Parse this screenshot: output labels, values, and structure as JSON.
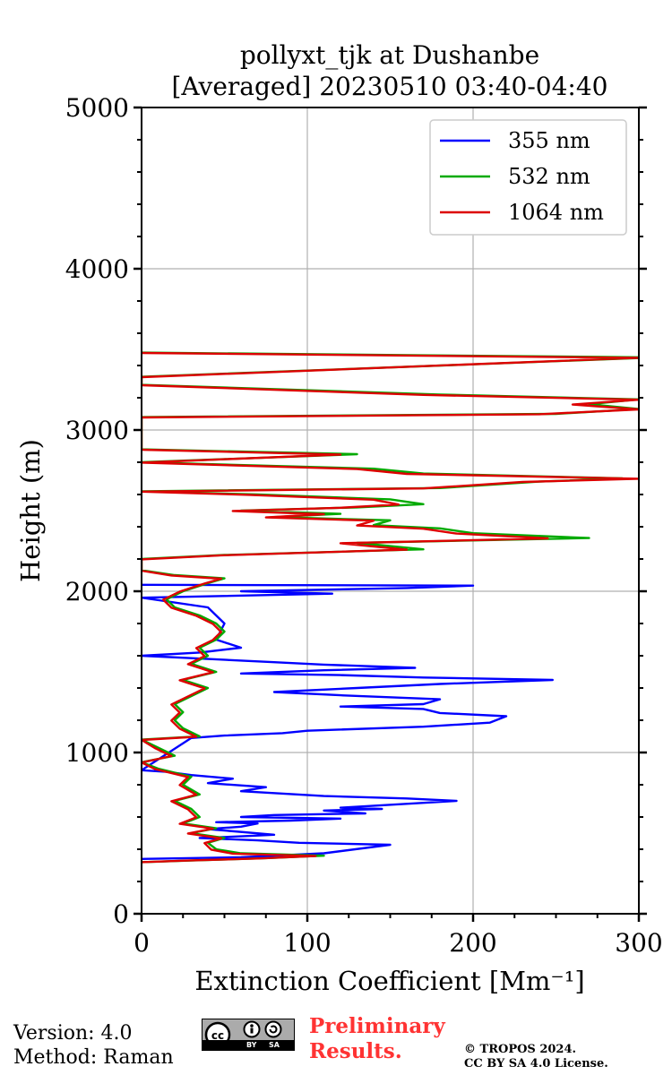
{
  "chart_data": {
    "type": "line",
    "title": [
      "pollyxt_tjk at Dushanbe",
      "[Averaged] 20230510 03:40-04:40"
    ],
    "xlabel": "Extinction Coefficient",
    "xlabel_unit": "[Mm⁻¹]",
    "ylabel": "Height (m)",
    "xlim": [
      0,
      300
    ],
    "ylim": [
      0,
      5000
    ],
    "xticks": [
      0,
      100,
      200,
      300
    ],
    "yticks": [
      0,
      1000,
      2000,
      3000,
      4000,
      5000
    ],
    "grid": true,
    "legend_position": "top-right",
    "series": [
      {
        "name": "355 nm",
        "color": "#0000ff",
        "points": [
          [
            0,
            340
          ],
          [
            60,
            350
          ],
          [
            110,
            375
          ],
          [
            150,
            428
          ],
          [
            95,
            440
          ],
          [
            70,
            455
          ],
          [
            35,
            470
          ],
          [
            60,
            480
          ],
          [
            80,
            490
          ],
          [
            40,
            525
          ],
          [
            60,
            540
          ],
          [
            70,
            560
          ],
          [
            45,
            568
          ],
          [
            90,
            578
          ],
          [
            120,
            590
          ],
          [
            60,
            600
          ],
          [
            80,
            612
          ],
          [
            135,
            622
          ],
          [
            110,
            640
          ],
          [
            145,
            650
          ],
          [
            120,
            658
          ],
          [
            190,
            700
          ],
          [
            160,
            715
          ],
          [
            110,
            730
          ],
          [
            60,
            760
          ],
          [
            75,
            785
          ],
          [
            40,
            810
          ],
          [
            55,
            838
          ],
          [
            30,
            860
          ],
          [
            15,
            880
          ],
          [
            0,
            890
          ],
          [
            30,
            1090
          ],
          [
            50,
            1105
          ],
          [
            85,
            1120
          ],
          [
            100,
            1135
          ],
          [
            170,
            1160
          ],
          [
            210,
            1185
          ],
          [
            220,
            1225
          ],
          [
            180,
            1245
          ],
          [
            170,
            1270
          ],
          [
            120,
            1285
          ],
          [
            170,
            1300
          ],
          [
            180,
            1330
          ],
          [
            120,
            1355
          ],
          [
            80,
            1375
          ],
          [
            130,
            1400
          ],
          [
            180,
            1425
          ],
          [
            248,
            1450
          ],
          [
            170,
            1465
          ],
          [
            120,
            1480
          ],
          [
            60,
            1490
          ],
          [
            110,
            1510
          ],
          [
            165,
            1525
          ],
          [
            110,
            1545
          ],
          [
            80,
            1560
          ],
          [
            40,
            1580
          ],
          [
            0,
            1600
          ],
          [
            35,
            1620
          ],
          [
            60,
            1650
          ],
          [
            45,
            1700
          ],
          [
            50,
            1800
          ],
          [
            40,
            1900
          ],
          [
            0,
            1960
          ],
          [
            115,
            1985
          ],
          [
            60,
            2000
          ],
          [
            160,
            2020
          ],
          [
            200,
            2035
          ],
          [
            0,
            2040
          ]
        ]
      },
      {
        "name": "532 nm",
        "color": "#00aa00",
        "points": [
          [
            0,
            320
          ],
          [
            30,
            330
          ],
          [
            75,
            345
          ],
          [
            110,
            360
          ],
          [
            60,
            375
          ],
          [
            45,
            400
          ],
          [
            40,
            440
          ],
          [
            50,
            470
          ],
          [
            30,
            500
          ],
          [
            45,
            530
          ],
          [
            25,
            560
          ],
          [
            35,
            600
          ],
          [
            30,
            650
          ],
          [
            20,
            700
          ],
          [
            35,
            740
          ],
          [
            25,
            800
          ],
          [
            30,
            850
          ],
          [
            10,
            900
          ],
          [
            0,
            940
          ],
          [
            20,
            980
          ],
          [
            10,
            1030
          ],
          [
            0,
            1080
          ],
          [
            35,
            1100
          ],
          [
            25,
            1150
          ],
          [
            20,
            1200
          ],
          [
            25,
            1250
          ],
          [
            20,
            1300
          ],
          [
            30,
            1350
          ],
          [
            40,
            1400
          ],
          [
            25,
            1450
          ],
          [
            45,
            1500
          ],
          [
            30,
            1550
          ],
          [
            40,
            1600
          ],
          [
            35,
            1650
          ],
          [
            45,
            1700
          ],
          [
            50,
            1750
          ],
          [
            45,
            1800
          ],
          [
            35,
            1850
          ],
          [
            20,
            1900
          ],
          [
            15,
            1950
          ],
          [
            25,
            2000
          ],
          [
            40,
            2050
          ],
          [
            50,
            2080
          ],
          [
            20,
            2100
          ],
          [
            0,
            2130
          ],
          [
            0,
            2200
          ],
          [
            50,
            2225
          ],
          [
            170,
            2260
          ],
          [
            130,
            2300
          ],
          [
            270,
            2330
          ],
          [
            200,
            2360
          ],
          [
            180,
            2390
          ],
          [
            140,
            2410
          ],
          [
            150,
            2440
          ],
          [
            80,
            2460
          ],
          [
            120,
            2480
          ],
          [
            60,
            2500
          ],
          [
            130,
            2520
          ],
          [
            170,
            2540
          ],
          [
            150,
            2570
          ],
          [
            70,
            2600
          ],
          [
            0,
            2620
          ],
          [
            180,
            2640
          ],
          [
            240,
            2680
          ],
          [
            290,
            2700
          ],
          [
            170,
            2730
          ],
          [
            140,
            2760
          ],
          [
            0,
            2800
          ],
          [
            130,
            2850
          ],
          [
            0,
            2880
          ],
          [
            0,
            3080
          ],
          [
            250,
            3100
          ],
          [
            300,
            3130
          ],
          [
            270,
            3160
          ],
          [
            300,
            3190
          ],
          [
            180,
            3220
          ],
          [
            0,
            3280
          ],
          [
            0,
            3330
          ],
          [
            310,
            3450
          ],
          [
            0,
            3480
          ]
        ]
      },
      {
        "name": "1064 nm",
        "color": "#dd0000",
        "points": [
          [
            0,
            320
          ],
          [
            28,
            330
          ],
          [
            70,
            343
          ],
          [
            105,
            358
          ],
          [
            55,
            373
          ],
          [
            42,
            398
          ],
          [
            38,
            438
          ],
          [
            48,
            468
          ],
          [
            28,
            498
          ],
          [
            43,
            528
          ],
          [
            23,
            558
          ],
          [
            33,
            598
          ],
          [
            28,
            648
          ],
          [
            18,
            698
          ],
          [
            33,
            738
          ],
          [
            23,
            798
          ],
          [
            28,
            848
          ],
          [
            8,
            898
          ],
          [
            0,
            938
          ],
          [
            18,
            978
          ],
          [
            8,
            1028
          ],
          [
            0,
            1078
          ],
          [
            33,
            1098
          ],
          [
            23,
            1148
          ],
          [
            18,
            1198
          ],
          [
            23,
            1248
          ],
          [
            18,
            1298
          ],
          [
            28,
            1348
          ],
          [
            38,
            1398
          ],
          [
            23,
            1448
          ],
          [
            43,
            1498
          ],
          [
            28,
            1548
          ],
          [
            38,
            1598
          ],
          [
            33,
            1648
          ],
          [
            43,
            1698
          ],
          [
            48,
            1748
          ],
          [
            43,
            1798
          ],
          [
            33,
            1848
          ],
          [
            18,
            1898
          ],
          [
            13,
            1948
          ],
          [
            23,
            1998
          ],
          [
            38,
            2048
          ],
          [
            48,
            2078
          ],
          [
            18,
            2098
          ],
          [
            0,
            2128
          ],
          [
            0,
            2198
          ],
          [
            48,
            2223
          ],
          [
            160,
            2258
          ],
          [
            120,
            2298
          ],
          [
            245,
            2328
          ],
          [
            190,
            2358
          ],
          [
            170,
            2388
          ],
          [
            130,
            2408
          ],
          [
            140,
            2438
          ],
          [
            75,
            2458
          ],
          [
            110,
            2478
          ],
          [
            55,
            2498
          ],
          [
            120,
            2518
          ],
          [
            155,
            2538
          ],
          [
            140,
            2568
          ],
          [
            65,
            2598
          ],
          [
            0,
            2618
          ],
          [
            170,
            2638
          ],
          [
            230,
            2678
          ],
          [
            300,
            2698
          ],
          [
            160,
            2728
          ],
          [
            130,
            2758
          ],
          [
            0,
            2798
          ],
          [
            120,
            2848
          ],
          [
            0,
            2878
          ],
          [
            0,
            3078
          ],
          [
            240,
            3098
          ],
          [
            300,
            3128
          ],
          [
            260,
            3158
          ],
          [
            300,
            3188
          ],
          [
            170,
            3218
          ],
          [
            0,
            3278
          ],
          [
            0,
            3328
          ],
          [
            300,
            3448
          ],
          [
            0,
            3478
          ]
        ]
      }
    ]
  },
  "footer": {
    "version_line": "Version: 4.0",
    "method_line": "Method: Raman",
    "preliminary_line1": "Preliminary",
    "preliminary_line2": "Results.",
    "copyright_line1": "© TROPOS 2024.",
    "copyright_line2": "CC BY SA 4.0 License.",
    "cc_icon_text": "cc",
    "cc_by_text": "BY",
    "cc_sa_text": "SA"
  }
}
